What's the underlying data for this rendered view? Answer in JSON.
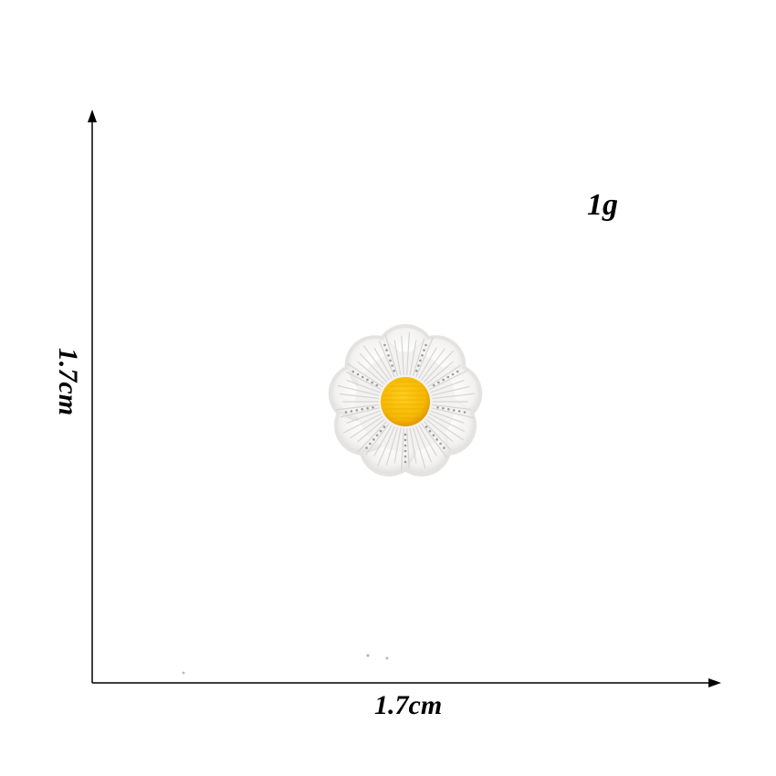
{
  "dimensions": {
    "weight": "1g",
    "width": "1.7cm",
    "height": "1.7cm"
  },
  "product": {
    "name": "daisy-embroidered-patch",
    "colors": {
      "petals": "#f3f2f1",
      "petal_stitch": "#9b9b9b",
      "center": "#f5b800",
      "center_dark": "#e29a00",
      "axis": "#000000",
      "background": "#ffffff"
    }
  }
}
